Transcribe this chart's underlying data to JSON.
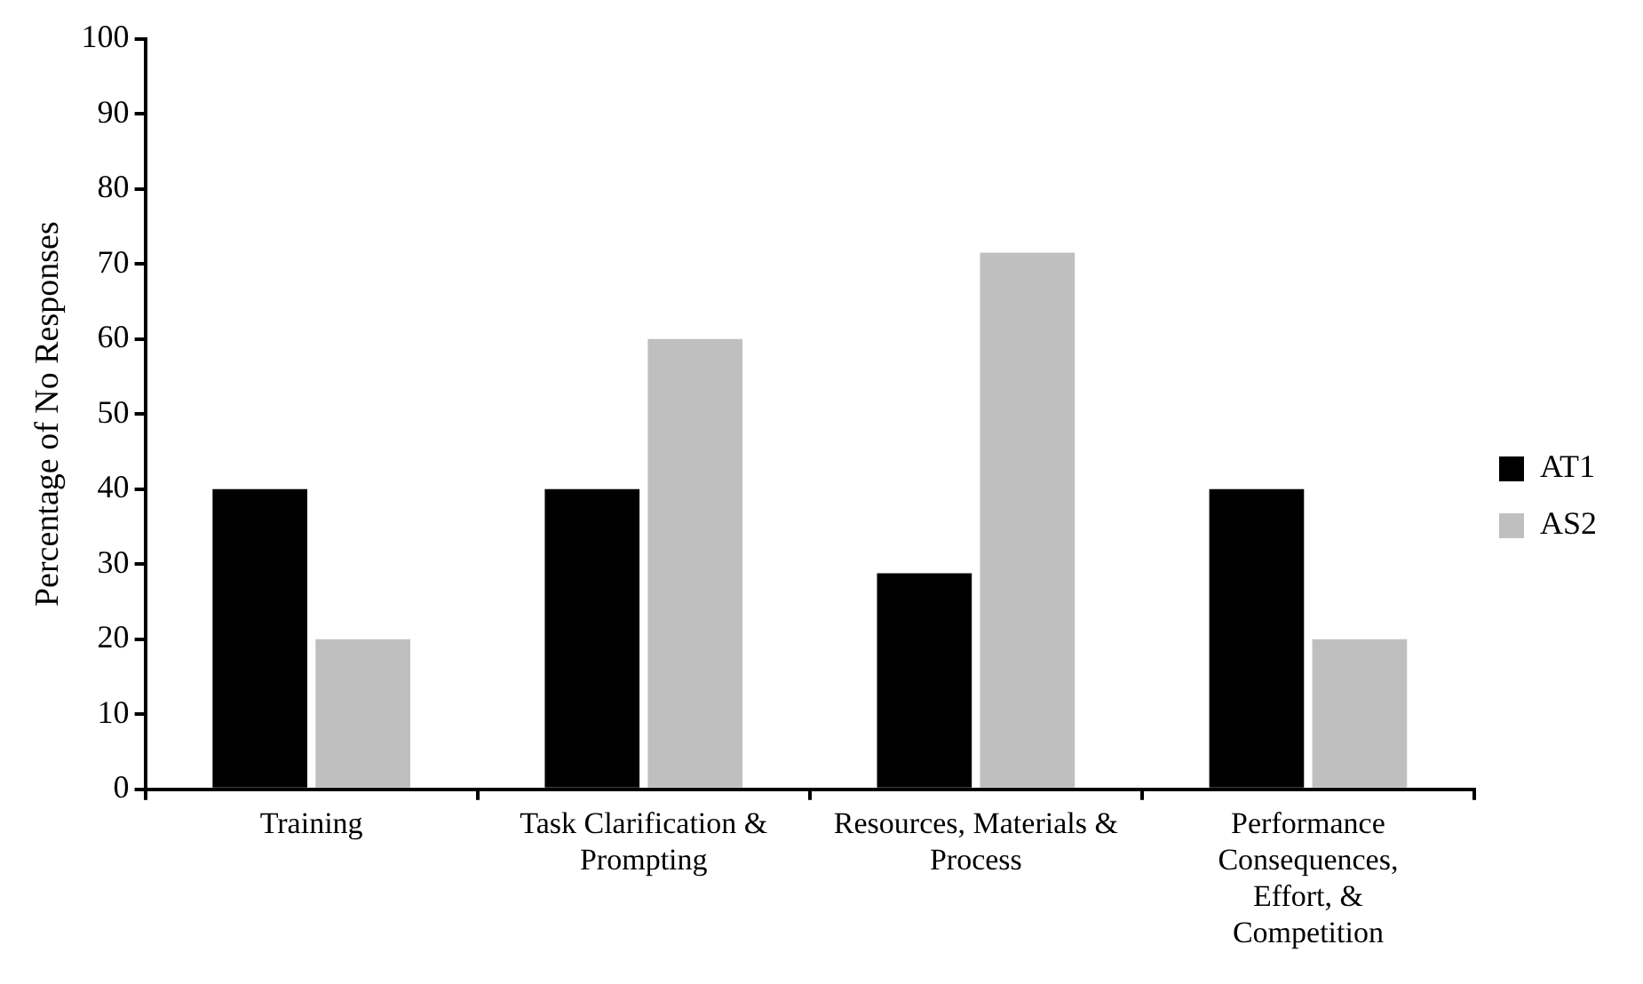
{
  "chart_data": {
    "type": "bar",
    "ylabel": "Percentage of No Responses",
    "categories": [
      "Training",
      "Task Clarification & Prompting",
      "Resources, Materials & Process",
      "Performance Consequences, Effort, & Competition"
    ],
    "series": [
      {
        "name": "AT1",
        "color": "#000000",
        "values": [
          40,
          40,
          28.8,
          40
        ]
      },
      {
        "name": "AS2",
        "color": "#bfbfbf",
        "values": [
          20,
          60,
          71.5,
          20
        ]
      }
    ],
    "ylim": [
      0,
      100
    ],
    "yticks": [
      0,
      10,
      20,
      30,
      40,
      50,
      60,
      70,
      80,
      90,
      100
    ],
    "grid": false,
    "legend": "right"
  }
}
